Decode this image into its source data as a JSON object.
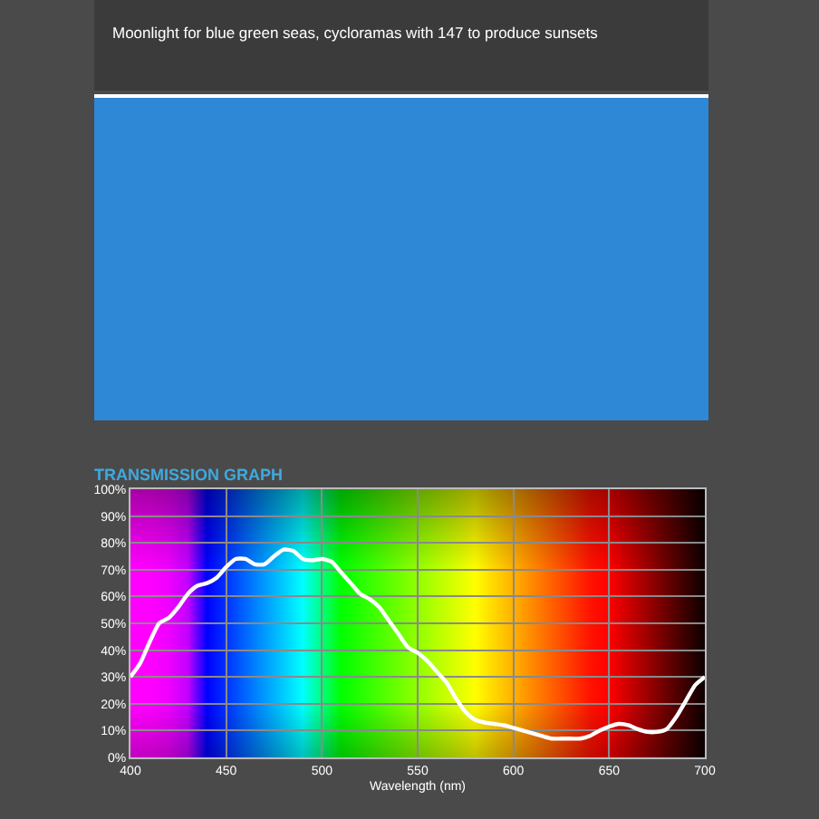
{
  "chart_data": {
    "type": "line",
    "title": "TRANSMISSION GRAPH",
    "subtitle": "Moonlight for blue green seas, cycloramas with 147 to produce sunsets",
    "xlabel": "Wavelength (nm)",
    "x": [
      400,
      405,
      410,
      415,
      420,
      425,
      430,
      435,
      440,
      445,
      450,
      455,
      460,
      465,
      470,
      475,
      480,
      485,
      490,
      495,
      500,
      505,
      510,
      515,
      520,
      525,
      530,
      535,
      540,
      545,
      550,
      555,
      560,
      565,
      570,
      575,
      580,
      585,
      590,
      595,
      600,
      605,
      610,
      615,
      620,
      625,
      630,
      635,
      640,
      645,
      650,
      655,
      660,
      665,
      670,
      675,
      680,
      685,
      690,
      695,
      700
    ],
    "series": [
      {
        "color": "#ffffff",
        "values": [
          30,
          35,
          43,
          50,
          52,
          56,
          61,
          64,
          65,
          67,
          71,
          74,
          74,
          72,
          72,
          75,
          77.5,
          77,
          74,
          73.5,
          74,
          73,
          69,
          65,
          61,
          59,
          56,
          51,
          46,
          41,
          39,
          36,
          32,
          28,
          22,
          17,
          14,
          13,
          12.5,
          12,
          11,
          10,
          9,
          8,
          7,
          7,
          7,
          7,
          8,
          10,
          11.5,
          12.5,
          12,
          10.5,
          9.5,
          9.5,
          10.5,
          15,
          21,
          27,
          30
        ]
      }
    ],
    "xlim": [
      400,
      700
    ],
    "xticks": [
      400,
      450,
      500,
      550,
      600,
      650,
      700
    ],
    "ylim": [
      0,
      100
    ],
    "yticks": [
      {
        "value": 0,
        "label": "0%"
      },
      {
        "value": 10,
        "label": "10%"
      },
      {
        "value": 20,
        "label": "20%"
      },
      {
        "value": 30,
        "label": "30%"
      },
      {
        "value": 40,
        "label": "40%"
      },
      {
        "value": 50,
        "label": "50%"
      },
      {
        "value": 60,
        "label": "60%"
      },
      {
        "value": 70,
        "label": "70%"
      },
      {
        "value": 80,
        "label": "80%"
      },
      {
        "value": 90,
        "label": "90%"
      },
      {
        "value": 100,
        "label": "100%"
      }
    ],
    "grid": true,
    "line_style": "solid"
  }
}
